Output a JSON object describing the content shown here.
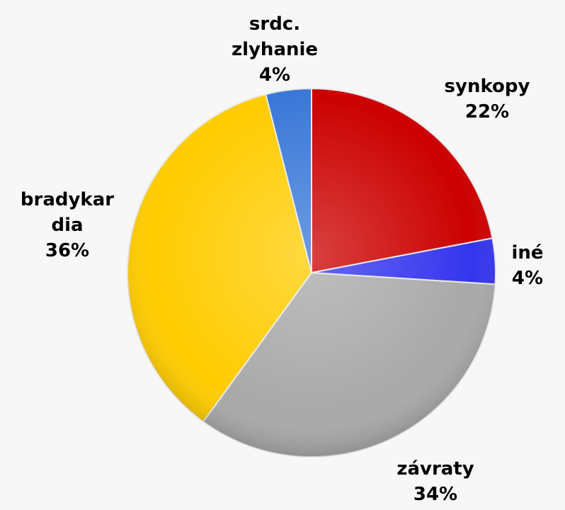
{
  "chart_data": {
    "type": "pie",
    "categories": [
      "synkopy",
      "iné",
      "závraty",
      "bradykardia",
      "srdc. zlyhanie"
    ],
    "values": [
      22,
      4,
      34,
      36,
      4
    ],
    "value_labels": [
      "22%",
      "4%",
      "34%",
      "36%",
      "4%"
    ],
    "colors": [
      "#cc0000",
      "#3535ee",
      "#a9a9a9",
      "#ffcc00",
      "#3a78d8"
    ]
  }
}
